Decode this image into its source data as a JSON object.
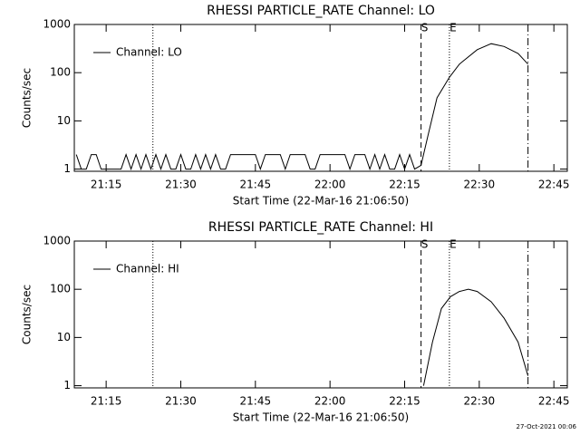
{
  "chart_data": [
    {
      "type": "line",
      "title": "RHESSI PARTICLE_RATE Channel: LO",
      "x_label": "Start Time (22-Mar-16 21:06:50)",
      "y_label": "Counts/sec",
      "x": [
        1269,
        1270,
        1271,
        1272,
        1273,
        1274,
        1275,
        1276,
        1277,
        1278,
        1279,
        1280,
        1281,
        1282,
        1283,
        1284,
        1285,
        1286,
        1287,
        1288,
        1289,
        1290,
        1291,
        1292,
        1293,
        1294,
        1295,
        1296,
        1297,
        1298,
        1299,
        1300,
        1301,
        1302,
        1303,
        1304,
        1305,
        1306,
        1307,
        1308,
        1309,
        1310,
        1311,
        1312,
        1313,
        1314,
        1315,
        1316,
        1317,
        1318,
        1319,
        1320,
        1321,
        1322,
        1323,
        1324,
        1325,
        1326,
        1327,
        1328,
        1329,
        1330,
        1331,
        1332,
        1333,
        1334,
        1335,
        1336,
        1337,
        1338.3,
        1339.7,
        1341.5,
        1344,
        1346,
        1349.6,
        1352.4,
        1355,
        1357.8,
        1359.8
      ],
      "series": [
        {
          "name": "Channel: LO",
          "color": "#000000",
          "values": [
            2,
            1,
            1,
            2,
            2,
            1,
            1,
            1,
            1,
            1,
            2,
            1,
            2,
            1,
            2,
            1,
            2,
            1,
            2,
            1,
            1,
            2,
            1,
            1,
            2,
            1,
            2,
            1,
            2,
            1,
            1,
            2,
            2,
            2,
            2,
            2,
            2,
            1,
            2,
            2,
            2,
            2,
            1,
            2,
            2,
            2,
            2,
            1,
            1,
            2,
            2,
            2,
            2,
            2,
            2,
            1,
            2,
            2,
            2,
            1,
            2,
            1,
            2,
            1,
            1,
            2,
            1,
            2,
            1,
            1.2,
            5,
            30,
            80,
            150,
            300,
            400,
            350,
            250,
            150
          ]
        }
      ],
      "xlim": [
        1268.6,
        1367.7
      ],
      "xticks": [
        {
          "value": 1275,
          "label": "21:15"
        },
        {
          "value": 1290,
          "label": "21:30"
        },
        {
          "value": 1305,
          "label": "21:45"
        },
        {
          "value": 1320,
          "label": "22:00"
        },
        {
          "value": 1335,
          "label": "22:15"
        },
        {
          "value": 1350,
          "label": "22:30"
        },
        {
          "value": 1365,
          "label": "22:45"
        }
      ],
      "ylim": [
        0.9,
        1000
      ],
      "yticks": [
        1,
        10,
        100,
        1000
      ],
      "log_y": true,
      "legend": "upper left",
      "markers": [
        {
          "x": 1284.4,
          "style": "dotted"
        },
        {
          "x": 1338.3,
          "style": "dashed",
          "label": "S"
        },
        {
          "x": 1344.0,
          "style": "dotted",
          "label": "E"
        },
        {
          "x": 1359.8,
          "style": "dashdot"
        }
      ]
    },
    {
      "type": "line",
      "title": "RHESSI PARTICLE_RATE Channel: HI",
      "x_label": "Start Time (22-Mar-16 21:06:50)",
      "y_label": "Counts/sec",
      "x": [
        1338.8,
        1340.6,
        1342.4,
        1344.2,
        1346,
        1347.8,
        1349.6,
        1352.4,
        1355,
        1357.8,
        1359.8
      ],
      "series": [
        {
          "name": "Channel: HI",
          "color": "#000000",
          "values": [
            1,
            8,
            40,
            70,
            90,
            100,
            90,
            55,
            25,
            8,
            1.6
          ]
        }
      ],
      "xlim": [
        1268.6,
        1367.7
      ],
      "xticks": [
        {
          "value": 1275,
          "label": "21:15"
        },
        {
          "value": 1290,
          "label": "21:30"
        },
        {
          "value": 1305,
          "label": "21:45"
        },
        {
          "value": 1320,
          "label": "22:00"
        },
        {
          "value": 1335,
          "label": "22:15"
        },
        {
          "value": 1350,
          "label": "22:30"
        },
        {
          "value": 1365,
          "label": "22:45"
        }
      ],
      "ylim": [
        0.9,
        1000
      ],
      "yticks": [
        1,
        10,
        100,
        1000
      ],
      "log_y": true,
      "legend": "upper left",
      "markers": [
        {
          "x": 1284.4,
          "style": "dotted"
        },
        {
          "x": 1338.3,
          "style": "dashed",
          "label": "S"
        },
        {
          "x": 1344.0,
          "style": "dotted",
          "label": "E"
        },
        {
          "x": 1359.8,
          "style": "dashdot"
        }
      ]
    }
  ],
  "footer": "27-Oct-2021 00:06"
}
